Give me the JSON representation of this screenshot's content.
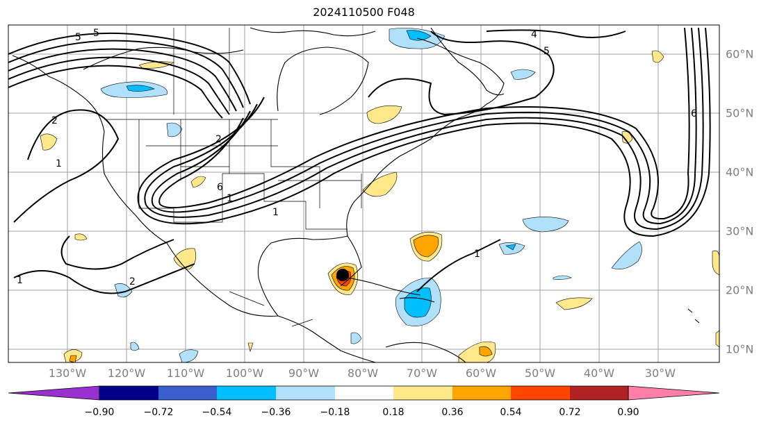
{
  "title": "2024110500 F048",
  "longitude_labels": [
    "130°W",
    "120°W",
    "110°W",
    "100°W",
    "90°W",
    "80°W",
    "70°W",
    "60°W",
    "50°W",
    "40°W",
    "30°W"
  ],
  "latitude_labels": [
    "60°N",
    "50°N",
    "40°N",
    "30°N",
    "20°N",
    "10°N"
  ],
  "contour_labels": [
    "5",
    "5",
    "4",
    "5",
    "6",
    "2",
    "1",
    "6",
    "1",
    "1",
    "1",
    "1",
    "2",
    "2"
  ],
  "colorbar": {
    "ticks": [
      "−0.90",
      "−0.72",
      "−0.54",
      "−0.36",
      "−0.18",
      "0.18",
      "0.36",
      "0.54",
      "0.72",
      "0.90"
    ],
    "colors": [
      "#9b30d0",
      "#00008b",
      "#3a5fcd",
      "#00bfff",
      "#b0e0fa",
      "#ffffff",
      "#ffe88a",
      "#ffa500",
      "#ff4500",
      "#b22222",
      "#ff7fa8"
    ]
  },
  "storm_marker": "hurricane-center-marker"
}
